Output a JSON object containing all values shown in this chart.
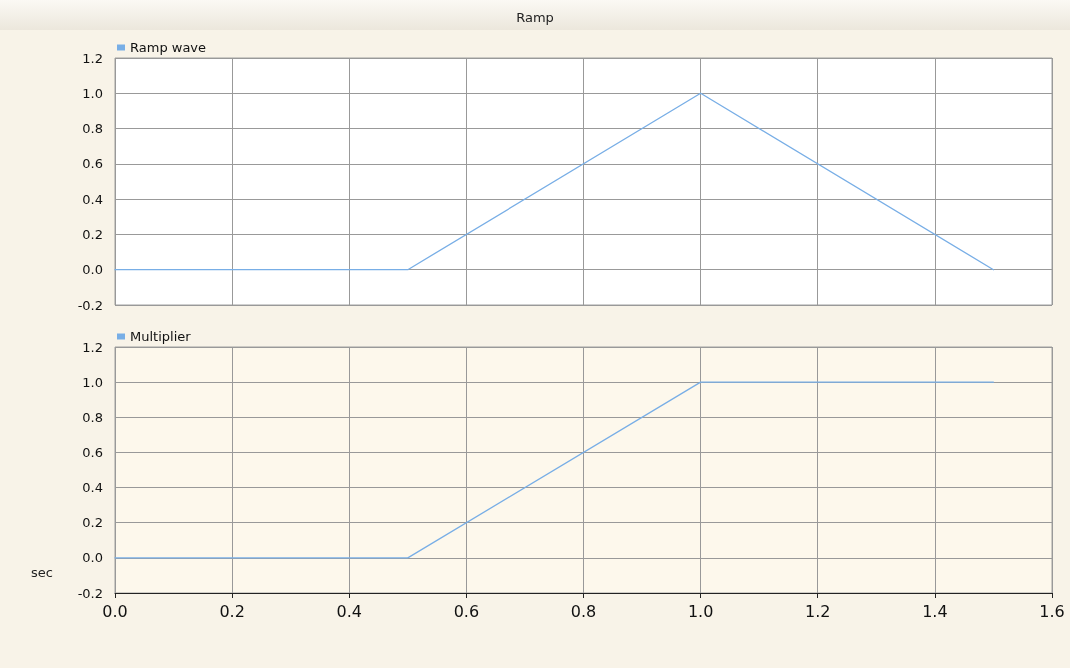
{
  "chart_data": [
    {
      "type": "line",
      "title": "Ramp",
      "x": [
        0,
        0.5,
        1.0,
        1.5
      ],
      "series": [
        {
          "name": "Ramp wave",
          "color": "#78aee6",
          "values": [
            0,
            0,
            1.0,
            0
          ]
        }
      ],
      "xlim": [
        0,
        1.6
      ],
      "xticks": [
        0,
        0.2,
        0.4,
        0.6,
        0.8,
        1.0,
        1.2,
        1.4,
        1.6
      ],
      "ylim": [
        -0.2,
        1.2
      ],
      "yticks": [
        {
          "value": -0.2,
          "label": "-0.2"
        },
        {
          "value": 0,
          "label": "0.0"
        },
        {
          "value": 0.2,
          "label": "0.2"
        },
        {
          "value": 0.4,
          "label": "0.4"
        },
        {
          "value": 0.6,
          "label": "0.6"
        },
        {
          "value": 0.8,
          "label": "0.8"
        },
        {
          "value": 1.0,
          "label": "1.0"
        },
        {
          "value": 1.2,
          "label": "1.2"
        }
      ],
      "grid": true,
      "legend": "top left",
      "marker": "none",
      "tick_labels": "y"
    },
    {
      "type": "line",
      "xlabel": "sec",
      "x": [
        0,
        0.5,
        1.0,
        1.5
      ],
      "series": [
        {
          "name": "Multiplier",
          "color": "#78aee6",
          "values": [
            0,
            0,
            1.0,
            1.0
          ]
        }
      ],
      "xlim": [
        0,
        1.6
      ],
      "xticks": [
        {
          "value": 0,
          "label": "0.0"
        },
        {
          "value": 0.2,
          "label": "0.2"
        },
        {
          "value": 0.4,
          "label": "0.4"
        },
        {
          "value": 0.6,
          "label": "0.6"
        },
        {
          "value": 0.8,
          "label": "0.8"
        },
        {
          "value": 1.0,
          "label": "1.0"
        },
        {
          "value": 1.2,
          "label": "1.2"
        },
        {
          "value": 1.4,
          "label": "1.4"
        },
        {
          "value": 1.6,
          "label": "1.6"
        }
      ],
      "ylim": [
        -0.2,
        1.2
      ],
      "yticks": [
        {
          "value": -0.2,
          "label": "-0.2"
        },
        {
          "value": 0,
          "label": "0.0"
        },
        {
          "value": 0.2,
          "label": "0.2"
        },
        {
          "value": 0.4,
          "label": "0.4"
        },
        {
          "value": 0.6,
          "label": "0.6"
        },
        {
          "value": 0.8,
          "label": "0.8"
        },
        {
          "value": 1.0,
          "label": "1.0"
        },
        {
          "value": 1.2,
          "label": "1.2"
        }
      ],
      "grid": true,
      "legend": "top left",
      "marker": "none"
    }
  ]
}
